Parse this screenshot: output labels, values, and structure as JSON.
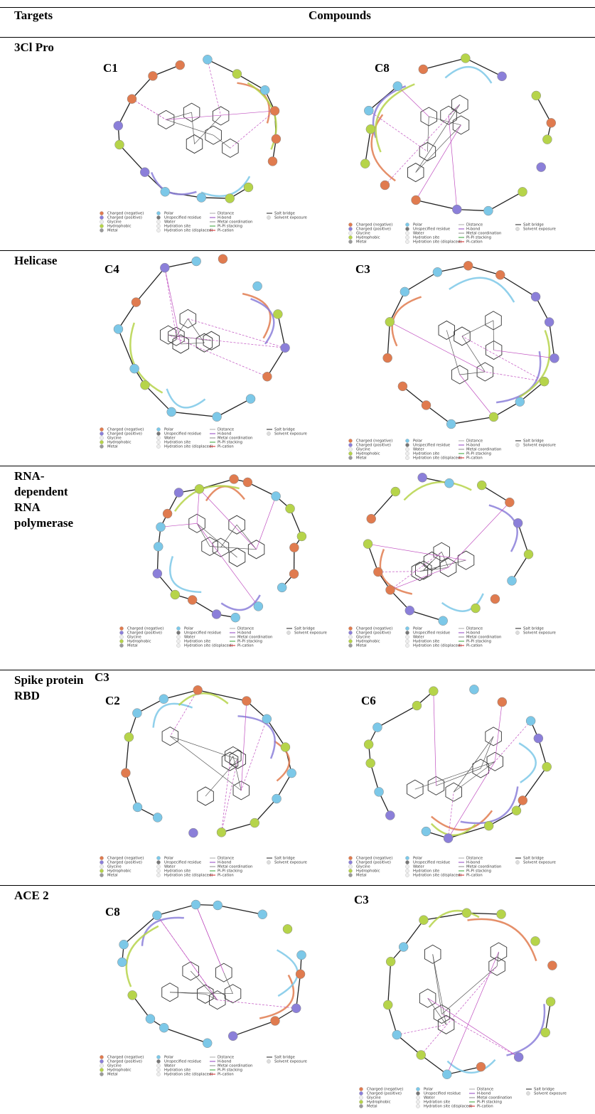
{
  "table": {
    "headers": [
      "Targets",
      "Compounds"
    ],
    "rows": [
      {
        "target": "3Cl Pro",
        "compounds": [
          "C1",
          "C8"
        ]
      },
      {
        "target": "Helicase",
        "compounds": [
          "C4",
          "C3"
        ]
      },
      {
        "target": "RNA-dependent RNA polymerase"
      },
      {
        "target": "Spike protein RBD",
        "note": "C3",
        "compounds": [
          "C2",
          "C6"
        ]
      },
      {
        "target": "ACE 2",
        "compounds": [
          "C8",
          "C3"
        ]
      }
    ]
  },
  "legend": [
    "Charged (negative)",
    "Charged (positive)",
    "Glycine",
    "Hydrophobic",
    "Metal",
    "Polar",
    "Unspecified residue",
    "Water",
    "Hydration site",
    "Hydration site (displaced)",
    "Distance",
    "H-bond",
    "Metal coordination",
    "Pi-Pi stacking",
    "Pi-cation",
    "Salt bridge",
    "Solvent exposure"
  ]
}
